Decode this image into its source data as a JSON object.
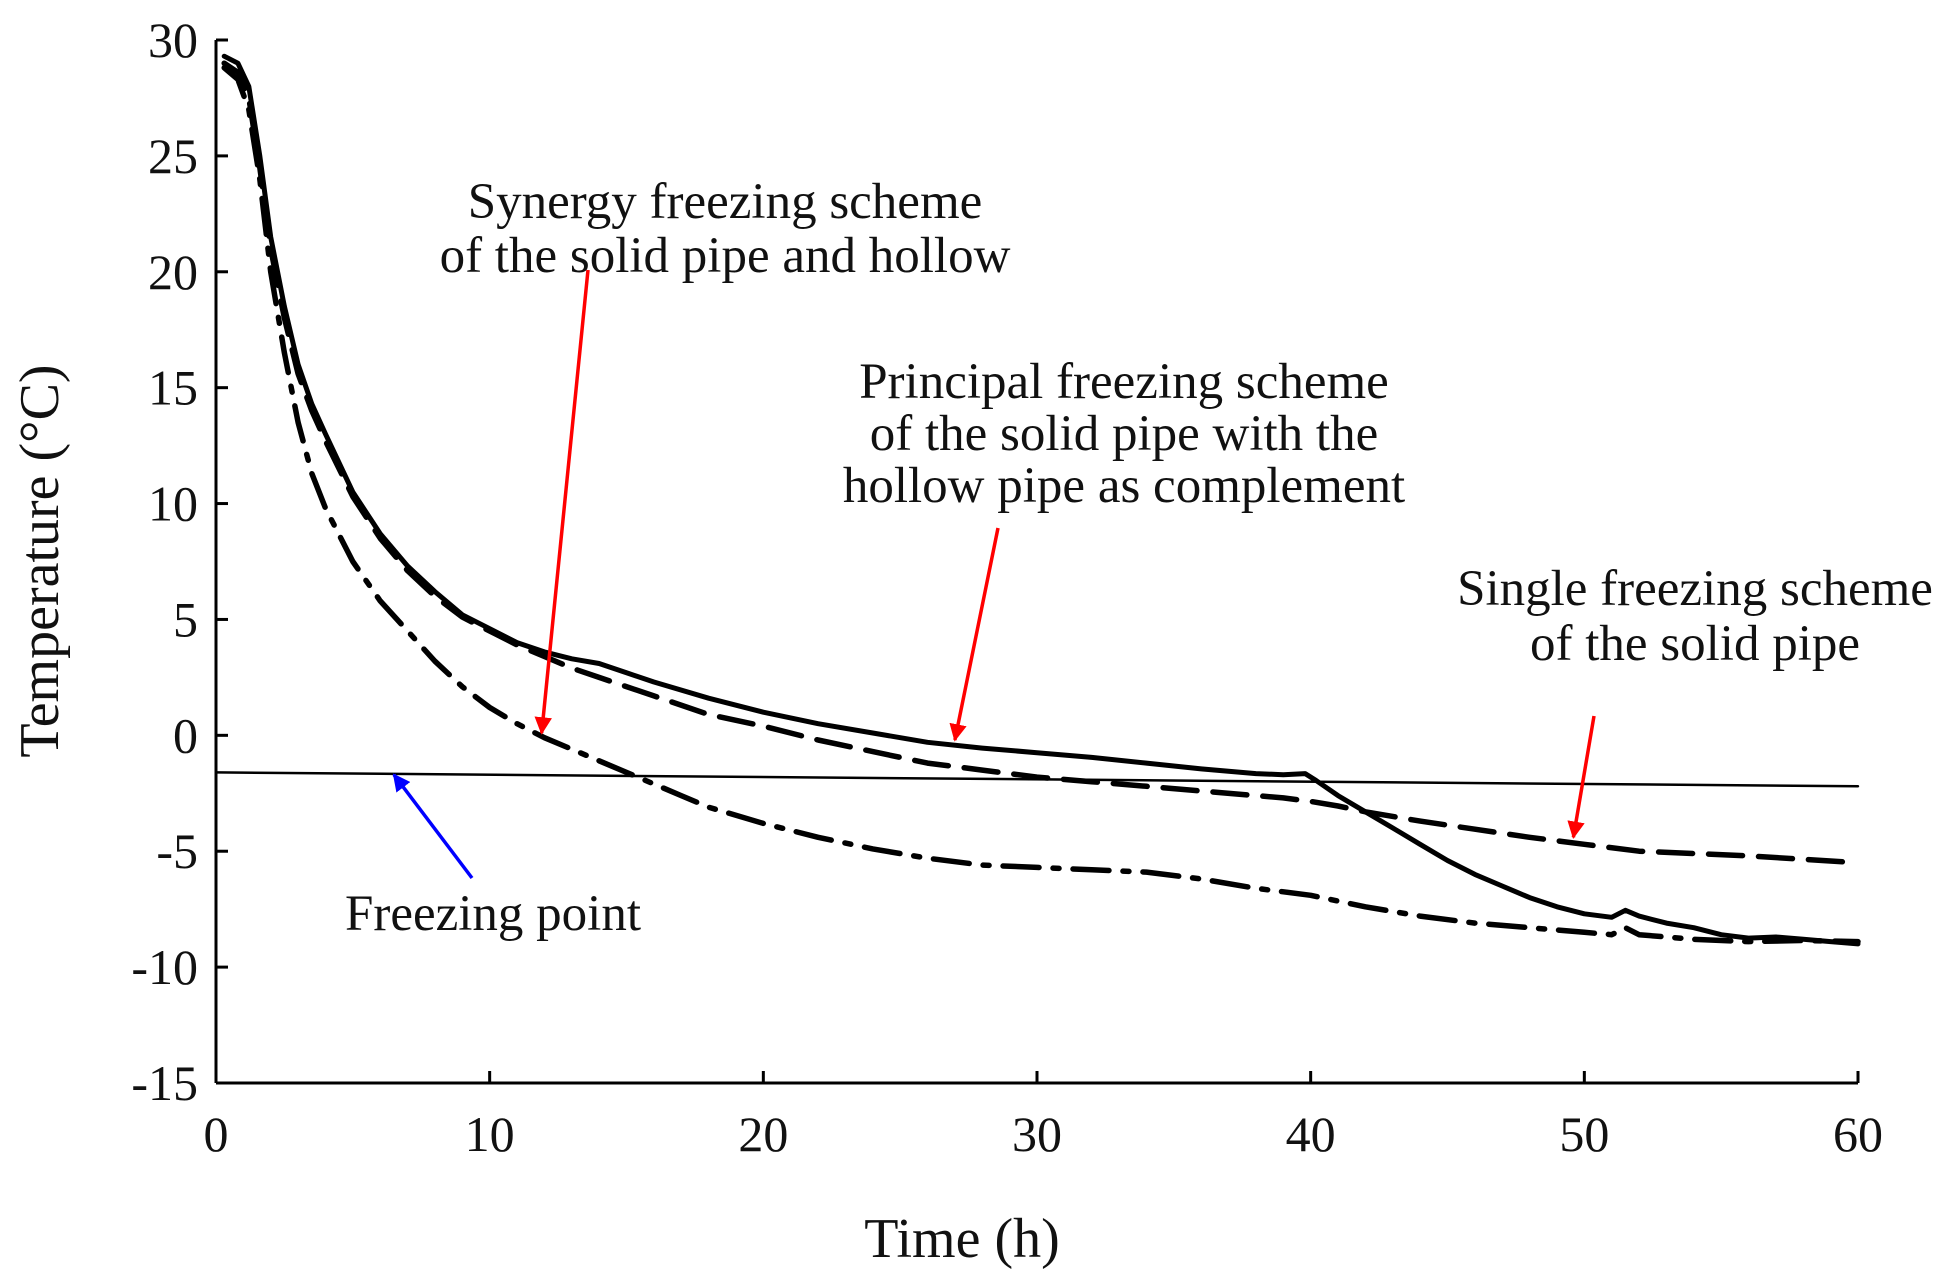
{
  "chart_data": {
    "type": "line",
    "title": "",
    "xlabel": "Time (h)",
    "ylabel": "Temperature (°C)",
    "xlim": [
      0,
      60
    ],
    "ylim": [
      -15,
      30
    ],
    "xticks": [
      "0",
      "10",
      "20",
      "30",
      "40",
      "50",
      "60"
    ],
    "yticks": [
      "30",
      "25",
      "20",
      "15",
      "10",
      "5",
      "0",
      "-5",
      "-10",
      "-15"
    ],
    "grid": false,
    "series": [
      {
        "name": "Principal freezing scheme of the solid pipe with the hollow pipe as complement",
        "style": "solid",
        "color": "#000000",
        "x": [
          0.3,
          0.8,
          1.2,
          1.6,
          2.0,
          2.5,
          3.0,
          3.5,
          4.0,
          5.0,
          6.0,
          7.0,
          8.0,
          9.0,
          10.0,
          11.0,
          12.0,
          13.0,
          14.0,
          15.0,
          16.0,
          18.0,
          20.0,
          22.0,
          24.0,
          26.0,
          28.0,
          30.0,
          32.0,
          34.0,
          36.0,
          38.0,
          39.0,
          39.8,
          40.2,
          41.0,
          42.0,
          43.0,
          44.0,
          45.0,
          46.0,
          47.0,
          48.0,
          49.0,
          50.0,
          51.0,
          51.5,
          52.0,
          53.0,
          54.0,
          55.0,
          56.0,
          57.0,
          58.0,
          59.0,
          60.0
        ],
        "values": [
          29.3,
          29.0,
          28.0,
          25.0,
          21.5,
          18.5,
          16.0,
          14.3,
          13.0,
          10.5,
          8.7,
          7.3,
          6.2,
          5.2,
          4.6,
          4.0,
          3.6,
          3.3,
          3.1,
          2.7,
          2.3,
          1.6,
          1.0,
          0.5,
          0.1,
          -0.3,
          -0.55,
          -0.75,
          -0.95,
          -1.2,
          -1.45,
          -1.65,
          -1.7,
          -1.65,
          -1.95,
          -2.6,
          -3.3,
          -4.0,
          -4.7,
          -5.4,
          -6.0,
          -6.5,
          -7.0,
          -7.4,
          -7.7,
          -7.85,
          -7.55,
          -7.8,
          -8.1,
          -8.3,
          -8.6,
          -8.75,
          -8.7,
          -8.8,
          -8.9,
          -9.0
        ]
      },
      {
        "name": "Single freezing scheme of the solid pipe",
        "style": "dashed",
        "color": "#000000",
        "x": [
          0.3,
          0.8,
          1.2,
          1.6,
          2.0,
          2.5,
          3.0,
          3.5,
          4.0,
          5.0,
          6.0,
          7.0,
          8.0,
          9.0,
          10.0,
          11.0,
          12.0,
          13.0,
          14.0,
          16.0,
          18.0,
          20.0,
          22.0,
          24.0,
          26.0,
          28.0,
          30.0,
          32.0,
          34.0,
          36.0,
          38.0,
          39.0,
          40.0,
          41.0,
          42.0,
          44.0,
          46.0,
          48.0,
          50.0,
          52.0,
          54.0,
          56.0,
          58.0,
          60.0
        ],
        "values": [
          29.0,
          28.6,
          27.5,
          24.5,
          21.0,
          18.0,
          15.6,
          14.0,
          12.7,
          10.3,
          8.5,
          7.1,
          6.0,
          5.1,
          4.5,
          3.9,
          3.4,
          2.9,
          2.5,
          1.7,
          0.9,
          0.4,
          -0.2,
          -0.7,
          -1.2,
          -1.5,
          -1.8,
          -2.0,
          -2.2,
          -2.4,
          -2.6,
          -2.7,
          -2.85,
          -3.05,
          -3.3,
          -3.7,
          -4.05,
          -4.4,
          -4.7,
          -5.0,
          -5.1,
          -5.2,
          -5.35,
          -5.5
        ]
      },
      {
        "name": "Synergy freezing scheme of the solid pipe and hollow",
        "style": "dash-dot",
        "color": "#000000",
        "x": [
          0.3,
          0.8,
          1.2,
          1.6,
          2.0,
          2.5,
          3.0,
          3.5,
          4.0,
          5.0,
          6.0,
          7.0,
          8.0,
          9.0,
          10.0,
          11.0,
          12.0,
          13.0,
          14.0,
          15.0,
          16.0,
          17.0,
          18.0,
          20.0,
          22.0,
          24.0,
          26.0,
          28.0,
          30.0,
          32.0,
          34.0,
          36.0,
          38.0,
          40.0,
          42.0,
          44.0,
          46.0,
          48.0,
          50.0,
          51.0,
          51.5,
          52.0,
          54.0,
          56.0,
          58.0,
          60.0
        ],
        "values": [
          28.8,
          28.3,
          27.0,
          24.0,
          20.0,
          16.5,
          13.5,
          11.3,
          9.8,
          7.5,
          5.8,
          4.5,
          3.2,
          2.1,
          1.2,
          0.5,
          -0.1,
          -0.6,
          -1.1,
          -1.6,
          -2.1,
          -2.6,
          -3.1,
          -3.8,
          -4.4,
          -4.9,
          -5.3,
          -5.6,
          -5.7,
          -5.8,
          -5.9,
          -6.2,
          -6.6,
          -6.9,
          -7.4,
          -7.8,
          -8.1,
          -8.3,
          -8.5,
          -8.6,
          -8.3,
          -8.6,
          -8.8,
          -8.9,
          -8.85,
          -8.9
        ]
      },
      {
        "name": "Freezing point",
        "style": "thin-solid",
        "color": "#000000",
        "x": [
          0,
          60
        ],
        "values": [
          -1.6,
          -2.2
        ]
      }
    ],
    "annotations": [
      {
        "lines": [
          "Synergy freezing scheme",
          "of the solid pipe and hollow"
        ],
        "arrow_color": "#ff0000",
        "points_to": {
          "x": 11.9,
          "y": 0.1
        }
      },
      {
        "lines": [
          "Principal freezing scheme",
          "of the solid pipe with the",
          "hollow pipe as complement"
        ],
        "arrow_color": "#ff0000",
        "points_to": {
          "x": 27.0,
          "y": -0.2
        }
      },
      {
        "lines": [
          "Single freezing scheme",
          "of the solid pipe"
        ],
        "arrow_color": "#ff0000",
        "points_to": {
          "x": 49.6,
          "y": -4.4
        }
      },
      {
        "lines": [
          "Freezing point"
        ],
        "arrow_color": "#0000ff",
        "points_to": {
          "x": 6.5,
          "y": -1.7
        }
      }
    ]
  }
}
